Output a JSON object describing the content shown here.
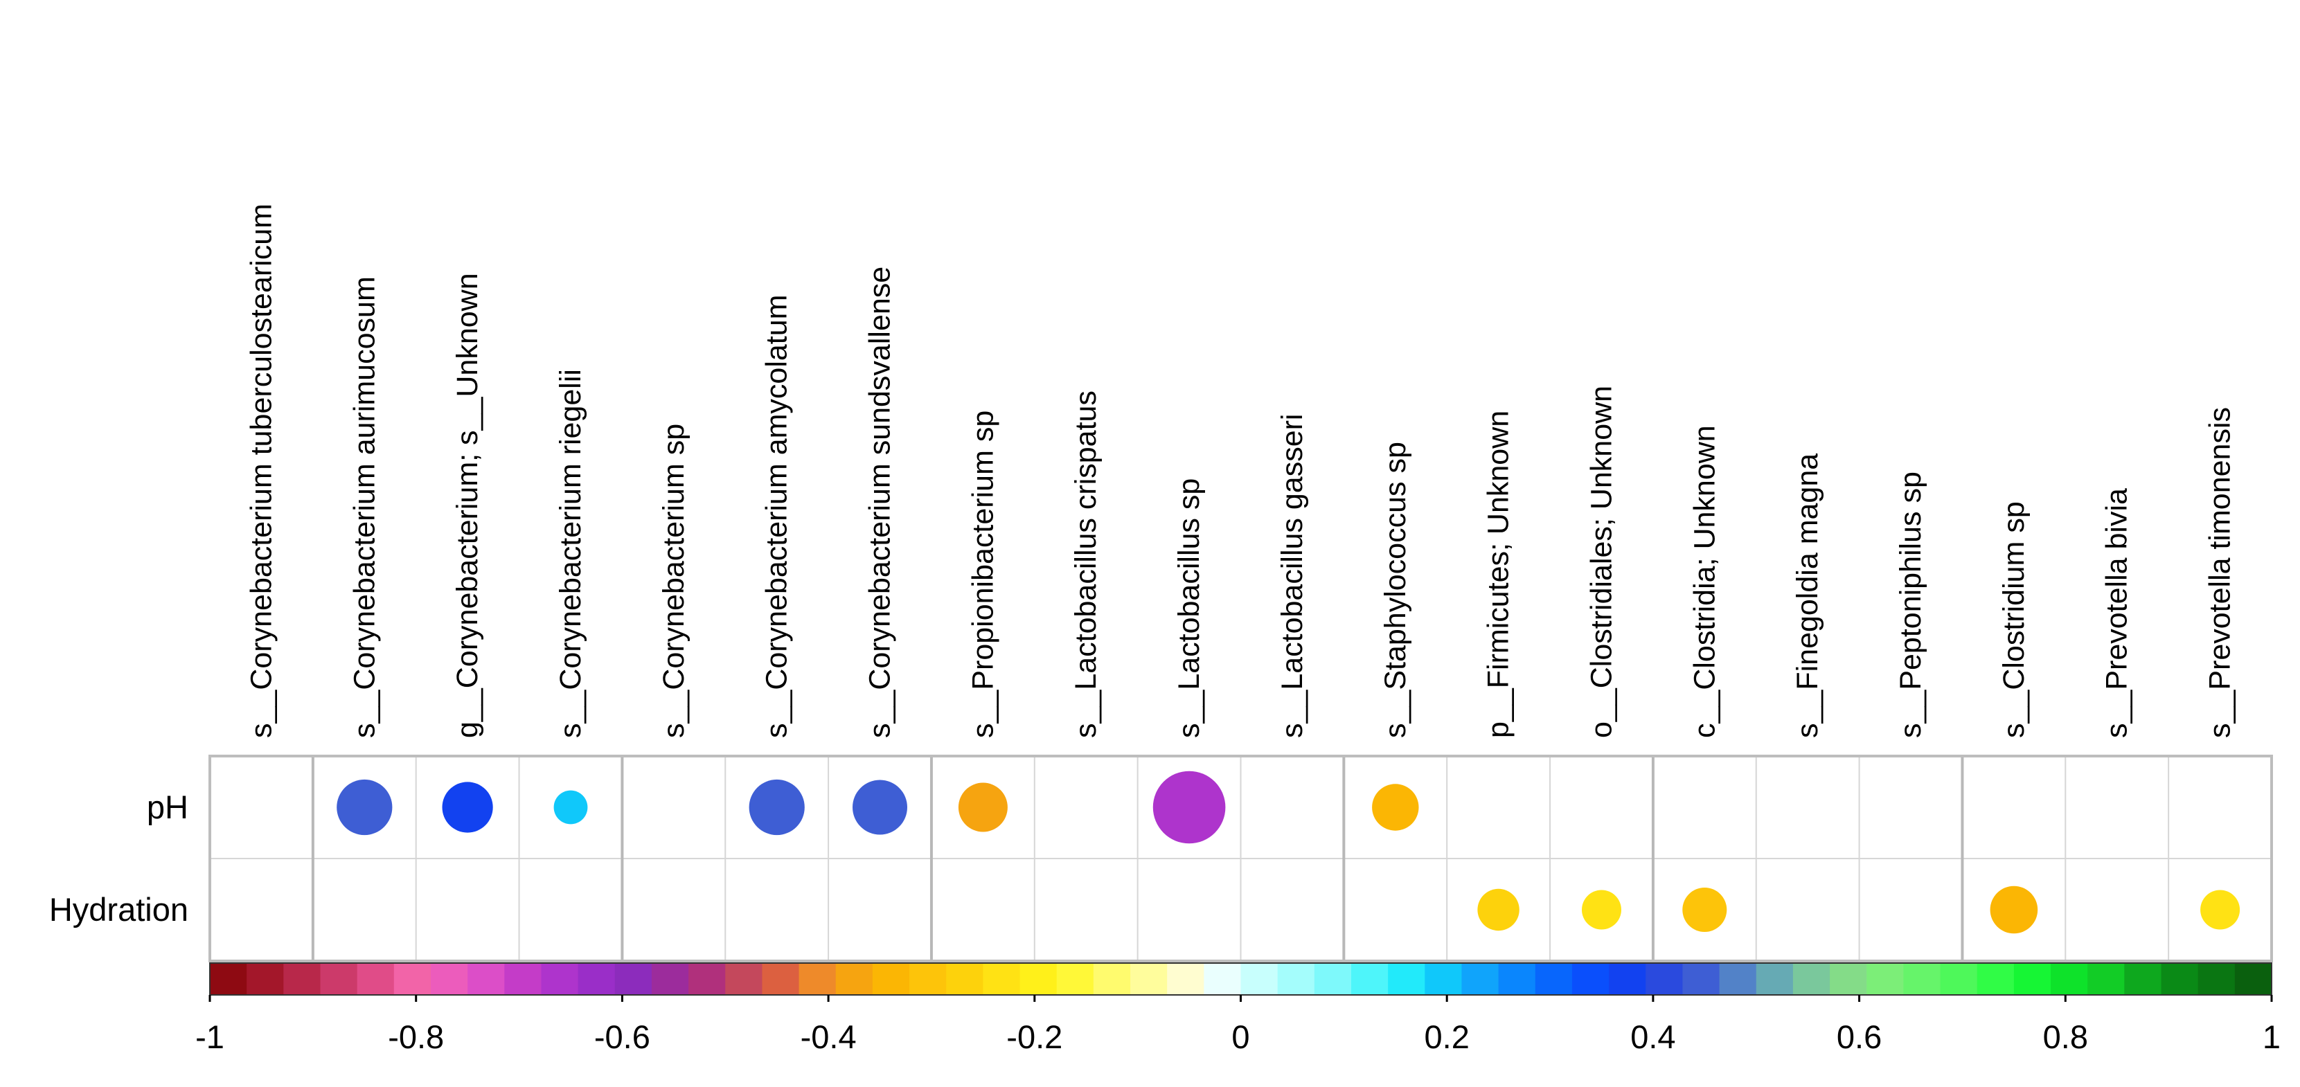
{
  "chart_data": {
    "type": "heatmap",
    "title": "",
    "columns": [
      "s__Corynebacterium tuberculostearicum",
      "s__Corynebacterium aurimucosum",
      "g__Corynebacterium; s__Unknown",
      "s__Corynebacterium riegelii",
      "s__Corynebacterium sp",
      "s__Corynebacterium amycolatum",
      "s__Corynebacterium sundsvallense",
      "s__Propionibacterium sp",
      "s__Lactobacillus crispatus",
      "s__Lactobacillus sp",
      "s__Lactobacillus gasseri",
      "s__Staphylococcus sp",
      "p__Firmicutes; Unknown",
      "o__Clostridiales; Unknown",
      "c__Clostridia; Unknown",
      "s__Finegoldia magna",
      "s__Peptoniphilus sp",
      "s__Clostridium sp",
      "s__Prevotella bivia",
      "s__Prevotella timonensis"
    ],
    "rows": [
      "pH",
      "Hydration"
    ],
    "values": [
      [
        null,
        0.45,
        0.39,
        0.18,
        null,
        0.45,
        0.44,
        -0.37,
        null,
        -0.66,
        null,
        -0.34,
        null,
        null,
        null,
        null,
        null,
        null,
        null,
        null
      ],
      [
        null,
        null,
        null,
        null,
        null,
        null,
        null,
        null,
        null,
        null,
        null,
        null,
        -0.28,
        -0.25,
        -0.31,
        null,
        null,
        -0.35,
        null,
        -0.25
      ]
    ],
    "group_boundaries_after_column": [
      1,
      4,
      7,
      11,
      14,
      17
    ],
    "colorbar": {
      "min": -1,
      "max": 1,
      "ticks": [
        "-1",
        "-0.8",
        "-0.6",
        "-0.4",
        "-0.2",
        "0",
        "0.2",
        "0.4",
        "0.6",
        "0.8",
        "1"
      ],
      "colors": [
        "#8e0a12",
        "#a3172a",
        "#b8284a",
        "#cc3a6a",
        "#e04c88",
        "#f264a8",
        "#ec5cbc",
        "#dc4ec8",
        "#c43cc8",
        "#ae34cc",
        "#9a2ec8",
        "#8c2cbc",
        "#9c2c9c",
        "#b0307c",
        "#c4485c",
        "#dc6040",
        "#ee8a2a",
        "#f6a410",
        "#fbb604",
        "#fdc40a",
        "#fdd20c",
        "#ffe214",
        "#fff01a",
        "#fff838",
        "#fffb6e",
        "#fffd9c",
        "#fffdd0",
        "#eafffe",
        "#c8fffd",
        "#a4fdfc",
        "#7ef9fb",
        "#4ef5fa",
        "#22eafa",
        "#10c8fa",
        "#10a4fb",
        "#0a86fd",
        "#0866fc",
        "#0a4ffc",
        "#1242f0",
        "#2a4ade",
        "#3e5ed4",
        "#5282c8",
        "#66aab4",
        "#7ac89c",
        "#84dc88",
        "#7cee78",
        "#66f46a",
        "#4ef85a",
        "#30fc46",
        "#16f634",
        "#0ee22a",
        "#12cc26",
        "#0ea81e",
        "#0a8a16",
        "#0a7612",
        "#0a600e"
      ]
    }
  }
}
